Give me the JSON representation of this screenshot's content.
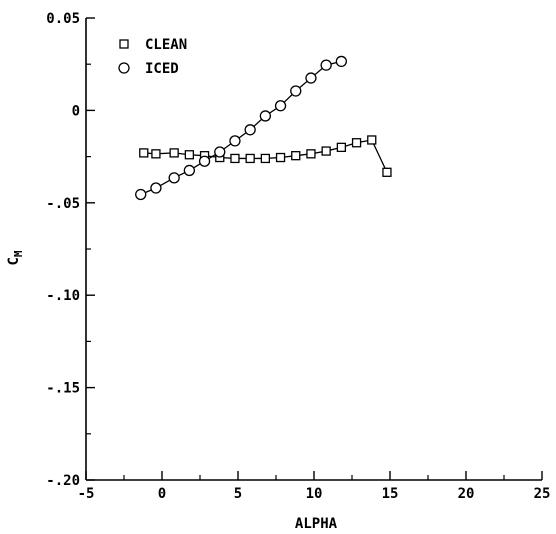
{
  "chart_data": {
    "type": "line",
    "xlabel": "ALPHA",
    "ylabel_main": "C",
    "ylabel_sub": "M",
    "xlim": [
      -5,
      25
    ],
    "ylim": [
      -0.2,
      0.05
    ],
    "x_ticks": [
      -5,
      0,
      5,
      10,
      15,
      20,
      25
    ],
    "x_tick_labels": [
      "-5",
      "0",
      "5",
      "10",
      "15",
      "20",
      "25"
    ],
    "y_ticks": [
      0.05,
      0,
      -0.05,
      -0.1,
      -0.15,
      -0.2
    ],
    "y_tick_labels": [
      "0.05",
      "0",
      "-.05",
      "-.10",
      "-.15",
      "-.20"
    ],
    "grid": false,
    "legend": "top-left",
    "series": [
      {
        "name": "CLEAN",
        "marker": "square",
        "x": [
          -1.2,
          -0.4,
          0.8,
          1.8,
          2.8,
          3.8,
          4.8,
          5.8,
          6.8,
          7.8,
          8.8,
          9.8,
          10.8,
          11.8,
          12.8,
          13.8,
          14.8
        ],
        "y": [
          -0.023,
          -0.0235,
          -0.023,
          -0.024,
          -0.0245,
          -0.0255,
          -0.026,
          -0.026,
          -0.026,
          -0.0255,
          -0.0245,
          -0.0235,
          -0.022,
          -0.02,
          -0.0175,
          -0.016,
          -0.0335
        ]
      },
      {
        "name": "ICED",
        "marker": "circle",
        "x": [
          -1.4,
          -0.4,
          0.8,
          1.8,
          2.8,
          3.8,
          4.8,
          5.8,
          6.8,
          7.8,
          8.8,
          9.8,
          10.8,
          11.8
        ],
        "y": [
          -0.0455,
          -0.042,
          -0.0365,
          -0.0325,
          -0.0275,
          -0.0225,
          -0.0165,
          -0.0105,
          -0.003,
          0.0025,
          0.0105,
          0.0175,
          0.0245,
          0.0265
        ]
      }
    ]
  }
}
